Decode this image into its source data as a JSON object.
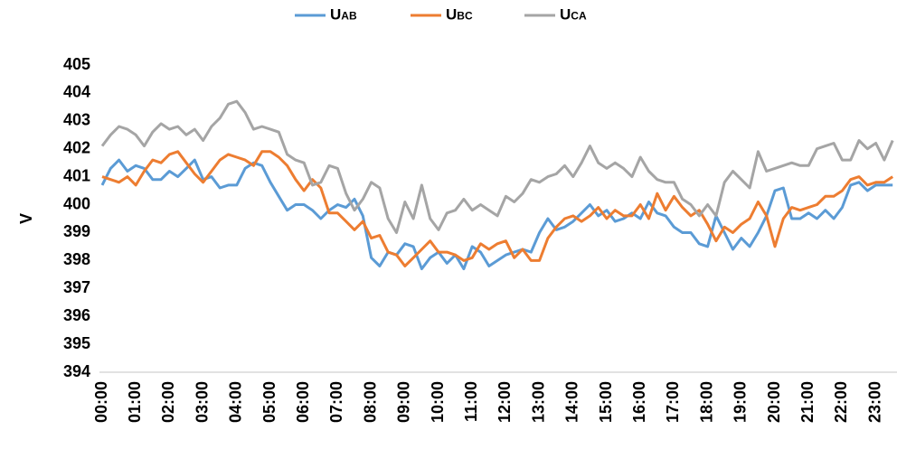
{
  "chart_data": {
    "type": "line",
    "ylabel": "V",
    "categories": [
      "00:00",
      null,
      null,
      null,
      "01:00",
      null,
      null,
      null,
      "02:00",
      null,
      null,
      null,
      "03:00",
      null,
      null,
      null,
      "04:00",
      null,
      null,
      null,
      "05:00",
      null,
      null,
      null,
      "06:00",
      null,
      null,
      null,
      "07:00",
      null,
      null,
      null,
      "08:00",
      null,
      null,
      null,
      "09:00",
      null,
      null,
      null,
      "10:00",
      null,
      null,
      null,
      "11:00",
      null,
      null,
      null,
      "12:00",
      null,
      null,
      null,
      "13:00",
      null,
      null,
      null,
      "14:00",
      null,
      null,
      null,
      "15:00",
      null,
      null,
      null,
      "16:00",
      null,
      null,
      null,
      "17:00",
      null,
      null,
      null,
      "18:00",
      null,
      null,
      null,
      "19:00",
      null,
      null,
      null,
      "20:00",
      null,
      null,
      null,
      "21:00",
      null,
      null,
      null,
      "22:00",
      null,
      null,
      null,
      "23:00",
      null,
      null
    ],
    "series": [
      {
        "name": "Uab",
        "color": "#5b9bd5",
        "values": [
          400.7,
          401.3,
          401.6,
          401.2,
          401.4,
          401.3,
          400.9,
          400.9,
          401.2,
          401.0,
          401.3,
          401.6,
          400.9,
          401.0,
          400.6,
          400.7,
          400.7,
          401.3,
          401.5,
          401.4,
          400.8,
          400.3,
          399.8,
          400.0,
          400.0,
          399.8,
          399.5,
          399.8,
          400.0,
          399.9,
          400.2,
          399.6,
          398.1,
          397.8,
          398.3,
          398.2,
          398.6,
          398.5,
          397.7,
          398.1,
          398.3,
          397.9,
          398.2,
          397.7,
          398.5,
          398.3,
          397.8,
          398.0,
          398.2,
          398.3,
          398.4,
          398.3,
          399.0,
          399.5,
          399.1,
          399.2,
          399.4,
          399.7,
          400.0,
          399.6,
          399.8,
          399.4,
          399.5,
          399.7,
          399.5,
          400.1,
          399.7,
          399.6,
          399.2,
          399.0,
          399.0,
          398.6,
          398.5,
          399.6,
          399.0,
          398.4,
          398.8,
          398.5,
          399.0,
          399.6,
          400.5,
          400.6,
          399.5,
          399.5,
          399.7,
          399.5,
          399.8,
          399.5,
          399.9,
          400.7,
          400.8,
          400.5,
          400.7,
          400.7,
          400.7
        ]
      },
      {
        "name": "Ubc",
        "color": "#ed7d31",
        "values": [
          401.0,
          400.9,
          400.8,
          401.0,
          400.7,
          401.2,
          401.6,
          401.5,
          401.8,
          401.9,
          401.5,
          401.1,
          400.8,
          401.2,
          401.6,
          401.8,
          401.7,
          401.6,
          401.4,
          401.9,
          401.9,
          401.7,
          401.4,
          400.9,
          400.5,
          400.9,
          400.6,
          399.7,
          399.7,
          399.4,
          399.1,
          399.4,
          398.8,
          398.9,
          398.3,
          398.2,
          397.8,
          398.1,
          398.4,
          398.7,
          398.3,
          398.3,
          398.2,
          398.0,
          398.1,
          398.6,
          398.4,
          398.6,
          398.7,
          398.1,
          398.4,
          398.0,
          398.0,
          398.8,
          399.2,
          399.5,
          399.6,
          399.4,
          399.6,
          399.9,
          399.5,
          399.8,
          399.6,
          399.6,
          400.0,
          399.5,
          400.4,
          399.8,
          400.3,
          399.9,
          399.6,
          399.8,
          399.3,
          398.7,
          399.2,
          399.0,
          399.3,
          399.5,
          400.1,
          399.6,
          398.5,
          399.5,
          399.9,
          399.8,
          399.9,
          400.0,
          400.3,
          400.3,
          400.5,
          400.9,
          401.0,
          400.7,
          400.8,
          400.8,
          401.0
        ]
      },
      {
        "name": "Uca",
        "color": "#a5a5a5",
        "values": [
          402.1,
          402.5,
          402.8,
          402.7,
          402.5,
          402.1,
          402.6,
          402.9,
          402.7,
          402.8,
          402.5,
          402.7,
          402.3,
          402.8,
          403.1,
          403.6,
          403.7,
          403.3,
          402.7,
          402.8,
          402.7,
          402.6,
          401.8,
          401.6,
          401.5,
          400.7,
          400.8,
          401.4,
          401.3,
          400.4,
          399.8,
          400.2,
          400.8,
          400.6,
          399.5,
          399.0,
          400.1,
          399.5,
          400.7,
          399.5,
          399.1,
          399.7,
          399.8,
          400.2,
          399.8,
          400.0,
          399.8,
          399.6,
          400.3,
          400.1,
          400.4,
          400.9,
          400.8,
          401.0,
          401.1,
          401.4,
          401.0,
          401.5,
          402.1,
          401.5,
          401.3,
          401.5,
          401.3,
          401.0,
          401.7,
          401.2,
          400.9,
          400.8,
          400.8,
          400.2,
          400.0,
          399.6,
          400.0,
          399.6,
          400.8,
          401.2,
          400.9,
          400.6,
          401.9,
          401.2,
          401.3,
          401.4,
          401.5,
          401.4,
          401.4,
          402.0,
          402.1,
          402.2,
          401.6,
          401.6,
          402.3,
          402.0,
          402.2,
          401.6,
          402.3
        ]
      }
    ],
    "ylim": [
      394,
      405
    ],
    "yticks": [
      394,
      395,
      396,
      397,
      398,
      399,
      400,
      401,
      402,
      403,
      404,
      405
    ],
    "grid": false,
    "legend": "top"
  }
}
